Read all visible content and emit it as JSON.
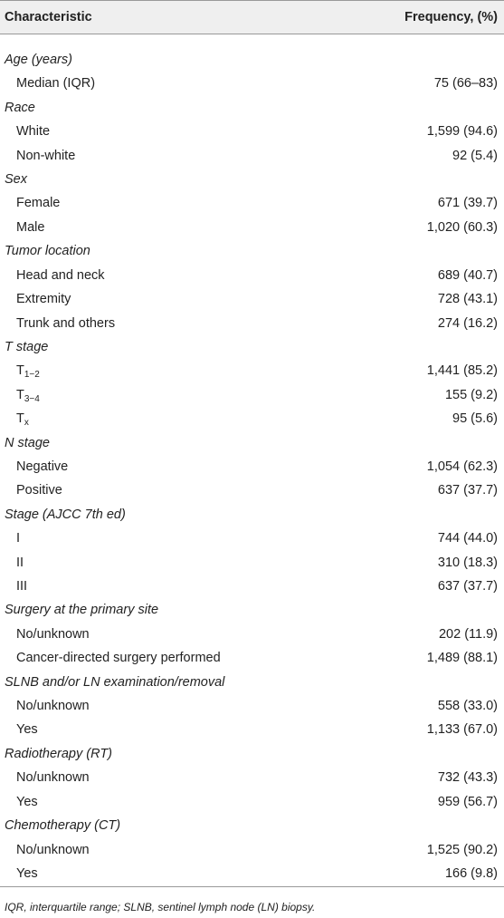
{
  "table": {
    "header": [
      "Characteristic",
      "Frequency, (%)"
    ],
    "rows": [
      {
        "group": "Age (years)"
      },
      {
        "label": "Median (IQR)",
        "value": "75 (66–83)"
      },
      {
        "group": "Race"
      },
      {
        "label": "White",
        "value": "1,599 (94.6)"
      },
      {
        "label": "Non-white",
        "value": "92 (5.4)"
      },
      {
        "group": "Sex"
      },
      {
        "label": "Female",
        "value": "671 (39.7)"
      },
      {
        "label": "Male",
        "value": "1,020 (60.3)"
      },
      {
        "group": "Tumor location"
      },
      {
        "label": "Head and neck",
        "value": "689 (40.7)"
      },
      {
        "label": "Extremity",
        "value": "728 (43.1)"
      },
      {
        "label": "Trunk and others",
        "value": "274 (16.2)"
      },
      {
        "group": "T stage"
      },
      {
        "label": "T",
        "sub": "1−2",
        "value": "1,441 (85.2)"
      },
      {
        "label": "T",
        "sub": "3−4",
        "value": "155 (9.2)"
      },
      {
        "label": "T",
        "sub": "x",
        "value": "95 (5.6)"
      },
      {
        "group": "N stage"
      },
      {
        "label": "Negative",
        "value": "1,054 (62.3)"
      },
      {
        "label": "Positive",
        "value": "637 (37.7)"
      },
      {
        "group": "Stage (AJCC 7th ed)"
      },
      {
        "label": "I",
        "value": "744 (44.0)"
      },
      {
        "label": "II",
        "value": "310 (18.3)"
      },
      {
        "label": "III",
        "value": "637 (37.7)"
      },
      {
        "group": "Surgery at the primary site"
      },
      {
        "label": "No/unknown",
        "value": "202 (11.9)"
      },
      {
        "label": "Cancer-directed surgery performed",
        "value": "1,489 (88.1)"
      },
      {
        "group": "SLNB and/or LN examination/removal"
      },
      {
        "label": "No/unknown",
        "value": "558 (33.0)"
      },
      {
        "label": "Yes",
        "value": "1,133 (67.0)"
      },
      {
        "group": "Radiotherapy (RT)"
      },
      {
        "label": "No/unknown",
        "value": "732 (43.3)"
      },
      {
        "label": "Yes",
        "value": "959 (56.7)"
      },
      {
        "group": "Chemotherapy (CT)"
      },
      {
        "label": "No/unknown",
        "value": "1,525 (90.2)"
      },
      {
        "label": "Yes",
        "value": "166 (9.8)"
      }
    ]
  },
  "footnote": "IQR, interquartile range; SLNB, sentinel lymph node (LN) biopsy."
}
